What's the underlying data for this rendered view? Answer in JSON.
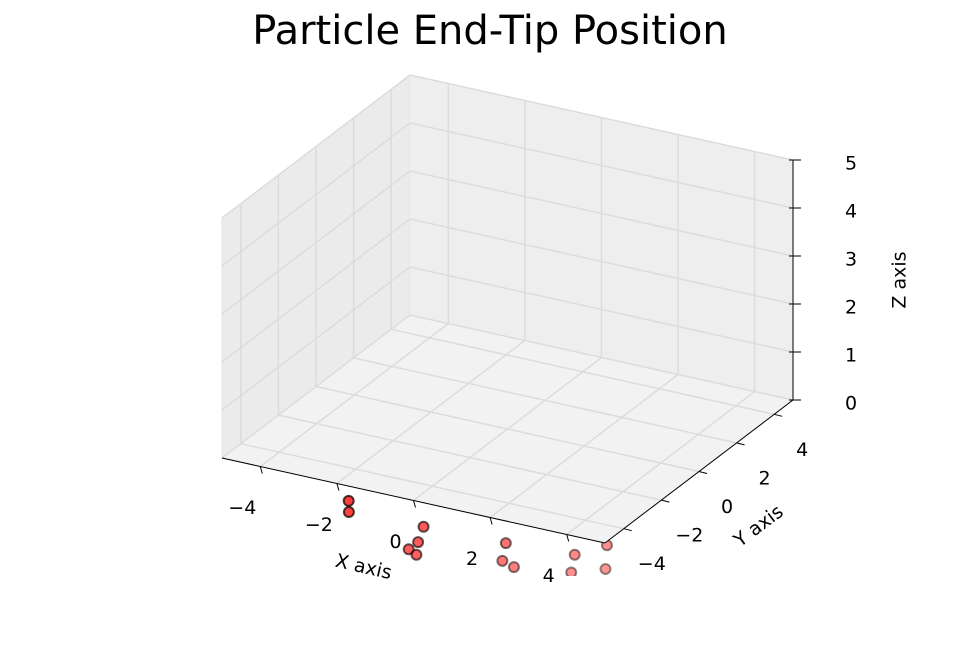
{
  "chart_data": {
    "type": "scatter3d",
    "title": "Particle End-Tip Position",
    "xlabel": "X axis",
    "ylabel": "Y axis",
    "zlabel": "Z axis",
    "xlim": [
      -5,
      5
    ],
    "ylim": [
      -5,
      5
    ],
    "zlim": [
      0,
      5
    ],
    "xticks": [
      {
        "value": -4,
        "label": "−4"
      },
      {
        "value": -2,
        "label": "−2"
      },
      0,
      2,
      4
    ],
    "yticks": [
      {
        "value": -4,
        "label": "−4"
      },
      {
        "value": -2,
        "label": "−2"
      },
      0,
      2,
      4
    ],
    "zticks": [
      0,
      1,
      2,
      3,
      4,
      5
    ],
    "grid": true,
    "color": "#ff0000",
    "x": [
      -1.3,
      -1.0,
      -0.3,
      0.9,
      1.2,
      1.2,
      1.5,
      2.5,
      2.6,
      2.7,
      3.0,
      3.4,
      3.8,
      4.7,
      5.1,
      5.1,
      5.7
    ],
    "y": [
      -5.8,
      -6.4,
      -4.5,
      -6.3,
      -7.2,
      -7.7,
      -7.9,
      -3.7,
      -4.1,
      -4.6,
      -6.2,
      -7.2,
      -7.4,
      -6.0,
      -5.1,
      -7.0,
      -6.4
    ],
    "z": [
      0,
      0,
      0,
      0,
      0,
      0,
      0,
      0,
      0,
      0,
      0,
      0,
      0,
      0,
      0,
      0,
      0
    ]
  }
}
